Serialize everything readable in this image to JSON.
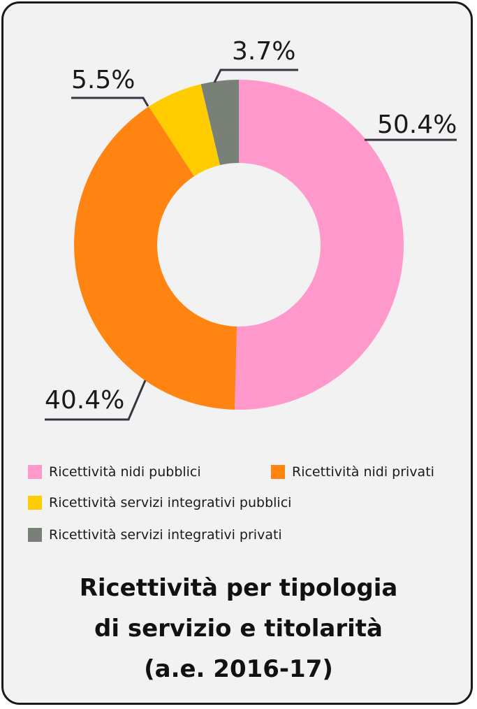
{
  "chart_data": {
    "type": "pie",
    "donut": true,
    "categories": [
      "Ricettività nidi pubblici",
      "Ricettività nidi privati",
      "Ricettività servizi integrativi pubblici",
      "Ricettività servizi integrativi privati"
    ],
    "values": [
      50.4,
      40.4,
      5.5,
      3.7
    ],
    "value_labels": [
      "50.4%",
      "40.4%",
      "5.5%",
      "3.7%"
    ],
    "colors": [
      "#ff99cc",
      "#ff8411",
      "#ffcc00",
      "#788078"
    ],
    "legend_position": "bottom",
    "title_lines": [
      "Ricettività per tipologia",
      "di servizio e titolarità",
      "(a.e. 2016-17)"
    ]
  }
}
